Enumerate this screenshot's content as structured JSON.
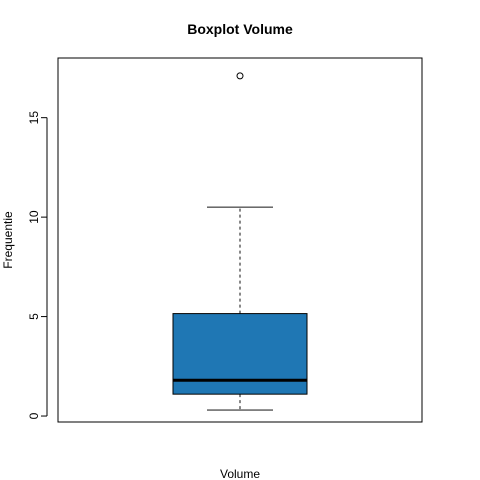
{
  "chart_data": {
    "type": "boxplot",
    "title": "Boxplot Volume",
    "xlabel": "Volume",
    "ylabel": "Frequentie",
    "ylim": [
      -0.3,
      18.0
    ],
    "yticks": [
      0,
      5,
      10,
      15
    ],
    "grid": false,
    "series": [
      {
        "whisker_low": 0.3,
        "q1": 1.1,
        "median": 1.8,
        "q3": 5.15,
        "whisker_high": 10.5,
        "outliers": [
          17.1
        ]
      }
    ],
    "colors": {
      "box_fill": "#1f77b4",
      "median_line": "#000000",
      "whisker": "#555555"
    }
  }
}
